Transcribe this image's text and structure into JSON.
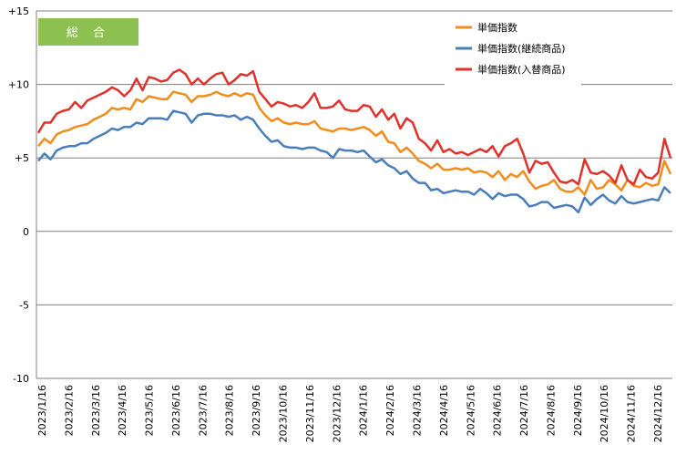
{
  "chart_data": {
    "type": "line",
    "title": "",
    "badge": "総 合",
    "xlabel": "",
    "ylabel": "",
    "ylim": [
      -10,
      15
    ],
    "y_ticks": [
      {
        "value": 15,
        "label": "+15"
      },
      {
        "value": 10,
        "label": "+10"
      },
      {
        "value": 5,
        "label": "+5"
      },
      {
        "value": 0,
        "label": "0"
      },
      {
        "value": -5,
        "label": "-5"
      },
      {
        "value": -10,
        "label": "-10"
      }
    ],
    "x_tick_labels": [
      "2023/1/16",
      "2023/2/16",
      "2023/3/16",
      "2023/4/16",
      "2023/5/16",
      "2023/6/16",
      "2023/7/16",
      "2023/8/16",
      "2023/9/16",
      "2023/10/16",
      "2023/11/16",
      "2023/12/16",
      "2024/1/16",
      "2024/2/16",
      "2024/3/16",
      "2024/4/16",
      "2024/5/16",
      "2024/6/16",
      "2024/7/16",
      "2024/8/16",
      "2024/9/16",
      "2024/10/16",
      "2024/11/16",
      "2024/12/16"
    ],
    "grid": "horizontal",
    "legend_position": "top-right",
    "series": [
      {
        "name": "単価指数",
        "color": "#f28c1c",
        "values": [
          5.8,
          6.3,
          6.0,
          6.6,
          6.8,
          6.9,
          7.1,
          7.2,
          7.3,
          7.6,
          7.8,
          8.0,
          8.4,
          8.3,
          8.4,
          8.3,
          9.0,
          8.8,
          9.2,
          9.1,
          9.0,
          9.0,
          9.5,
          9.4,
          9.3,
          8.8,
          9.2,
          9.2,
          9.3,
          9.5,
          9.3,
          9.2,
          9.4,
          9.2,
          9.4,
          9.3,
          8.4,
          7.9,
          7.5,
          7.7,
          7.4,
          7.3,
          7.4,
          7.3,
          7.3,
          7.5,
          7.0,
          6.9,
          6.8,
          7.0,
          7.0,
          6.9,
          7.0,
          7.1,
          6.9,
          6.5,
          6.8,
          6.1,
          6.0,
          5.4,
          5.7,
          5.3,
          4.8,
          4.6,
          4.3,
          4.6,
          4.2,
          4.2,
          4.3,
          4.2,
          4.3,
          4.0,
          4.1,
          4.0,
          3.7,
          4.1,
          3.5,
          3.9,
          3.7,
          4.1,
          3.4,
          2.9,
          3.1,
          3.2,
          3.5,
          2.9,
          2.7,
          2.7,
          3.0,
          2.5,
          3.5,
          2.9,
          3.0,
          3.5,
          3.2,
          2.8,
          3.5,
          3.1,
          3.0,
          3.3,
          3.1,
          3.2,
          4.8,
          3.9
        ]
      },
      {
        "name": "単価指数(継続商品)",
        "color": "#4a7ebb",
        "values": [
          4.8,
          5.3,
          4.9,
          5.5,
          5.7,
          5.8,
          5.8,
          6.0,
          6.0,
          6.3,
          6.5,
          6.7,
          7.0,
          6.9,
          7.1,
          7.1,
          7.4,
          7.3,
          7.7,
          7.7,
          7.7,
          7.6,
          8.2,
          8.1,
          8.0,
          7.4,
          7.9,
          8.0,
          8.0,
          7.9,
          7.9,
          7.8,
          7.9,
          7.6,
          7.8,
          7.6,
          7.0,
          6.5,
          6.1,
          6.2,
          5.8,
          5.7,
          5.7,
          5.6,
          5.7,
          5.7,
          5.5,
          5.4,
          5.0,
          5.6,
          5.5,
          5.5,
          5.4,
          5.5,
          5.1,
          4.7,
          4.9,
          4.5,
          4.3,
          3.9,
          4.1,
          3.6,
          3.3,
          3.3,
          2.8,
          2.9,
          2.6,
          2.7,
          2.8,
          2.7,
          2.7,
          2.5,
          2.9,
          2.6,
          2.2,
          2.6,
          2.4,
          2.5,
          2.5,
          2.2,
          1.7,
          1.8,
          2.0,
          2.0,
          1.6,
          1.7,
          1.8,
          1.7,
          1.3,
          2.3,
          1.8,
          2.2,
          2.5,
          2.1,
          1.9,
          2.4,
          2.0,
          1.9,
          2.0,
          2.1,
          2.2,
          2.1,
          3.0,
          2.6
        ]
      },
      {
        "name": "単価指数(入替商品)",
        "color": "#e0322c",
        "values": [
          6.7,
          7.4,
          7.4,
          8.0,
          8.2,
          8.3,
          8.8,
          8.4,
          8.9,
          9.1,
          9.3,
          9.5,
          9.8,
          9.6,
          9.2,
          9.6,
          10.4,
          9.6,
          10.5,
          10.4,
          10.2,
          10.3,
          10.8,
          11.0,
          10.7,
          10.0,
          10.4,
          10.0,
          10.4,
          10.7,
          10.8,
          10.0,
          10.3,
          10.7,
          10.6,
          10.9,
          9.5,
          9.0,
          8.5,
          8.8,
          8.7,
          8.5,
          8.6,
          8.4,
          8.8,
          9.4,
          8.4,
          8.4,
          8.5,
          8.9,
          8.3,
          8.2,
          8.2,
          8.6,
          8.5,
          7.8,
          8.3,
          7.6,
          8.0,
          7.0,
          7.7,
          7.4,
          6.3,
          6.0,
          5.5,
          6.2,
          5.4,
          5.6,
          5.3,
          5.4,
          5.2,
          5.4,
          5.6,
          5.4,
          5.8,
          5.1,
          5.8,
          6.0,
          6.3,
          5.3,
          4.0,
          4.8,
          4.6,
          4.7,
          4.0,
          3.4,
          3.3,
          3.5,
          3.2,
          4.9,
          4.0,
          3.9,
          4.1,
          3.8,
          3.3,
          4.5,
          3.5,
          3.2,
          4.2,
          3.7,
          3.6,
          4.0,
          6.3,
          5.0
        ]
      }
    ]
  }
}
